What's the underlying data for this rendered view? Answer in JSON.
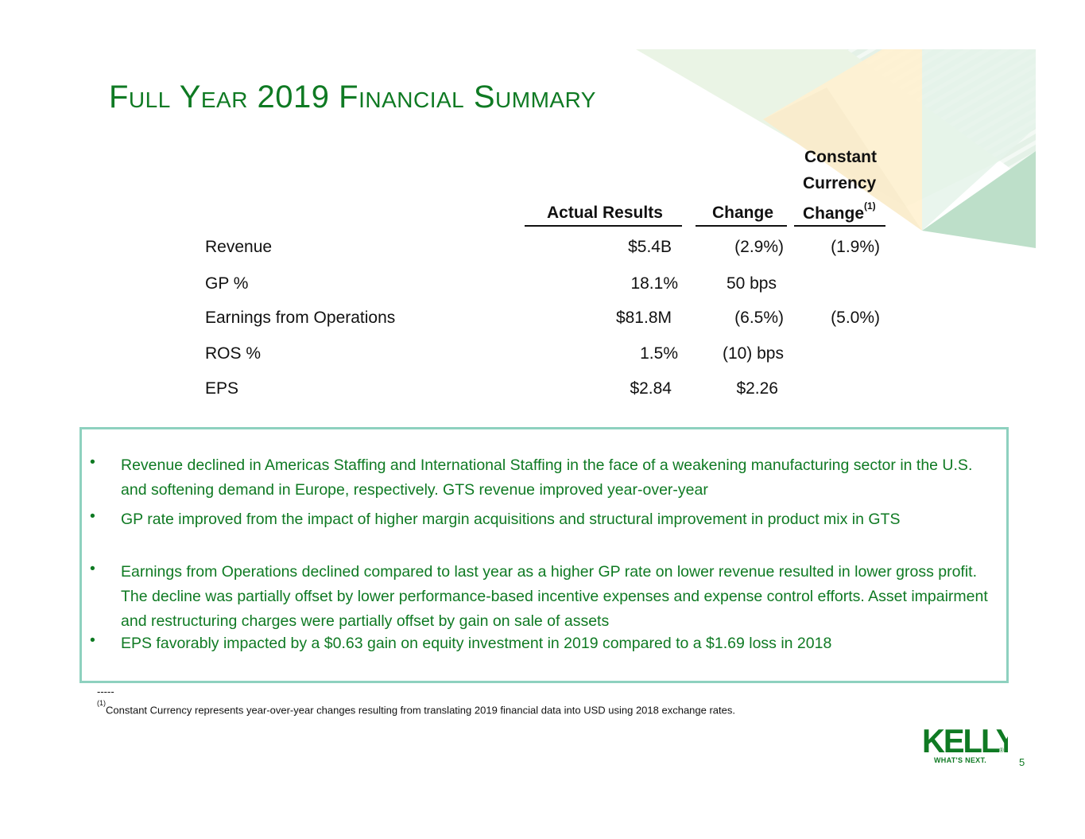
{
  "slide": {
    "title": "Full Year 2019 Financial Summary",
    "page_number": "5"
  },
  "table": {
    "headers": {
      "actual": "Actual Results",
      "change": "Change",
      "cc_line1": "Constant",
      "cc_line2": "Currency",
      "cc_line3": "Change",
      "cc_note": "(1)"
    },
    "rows": [
      {
        "label": "Revenue",
        "actual": "$5.4B",
        "change": "(2.9%)",
        "cc": "(1.9%)"
      },
      {
        "label": "GP %",
        "actual": "18.1%",
        "change": "50 bps",
        "cc": ""
      },
      {
        "label": "Earnings from Operations",
        "actual": "$81.8M",
        "change": "(6.5%)",
        "cc": "(5.0%)"
      },
      {
        "label": "ROS %",
        "actual": "1.5%",
        "change": "(10) bps",
        "cc": ""
      },
      {
        "label": "EPS",
        "actual": "$2.84",
        "change": "$2.26",
        "cc": ""
      }
    ]
  },
  "bullets": [
    "Revenue declined in Americas Staffing and International Staffing in the face of a weakening manufacturing sector in the U.S. and softening demand in Europe, respectively.  GTS revenue improved year-over-year",
    "GP rate improved from the impact of higher margin acquisitions and structural improvement in product mix in GTS",
    "Earnings from Operations declined compared to last year as a higher GP rate on lower revenue resulted in lower gross profit. The decline was partially offset by lower performance-based incentive expenses and expense control efforts. Asset impairment and restructuring charges were partially offset by gain on sale of assets",
    "EPS favorably impacted by a $0.63 gain on equity investment in 2019 compared to a $1.69 loss in 2018"
  ],
  "footnote": {
    "dashes": "-----",
    "marker": "(1)",
    "text": "Constant Currency represents year-over-year changes resulting from translating 2019 financial data into USD using 2018 exchange rates."
  },
  "logo": {
    "name": "KELLY",
    "registered": "®",
    "tagline": "WHAT'S NEXT."
  },
  "colors": {
    "brand_green": "#0f7a23",
    "box_border": "#8ed1bf"
  }
}
